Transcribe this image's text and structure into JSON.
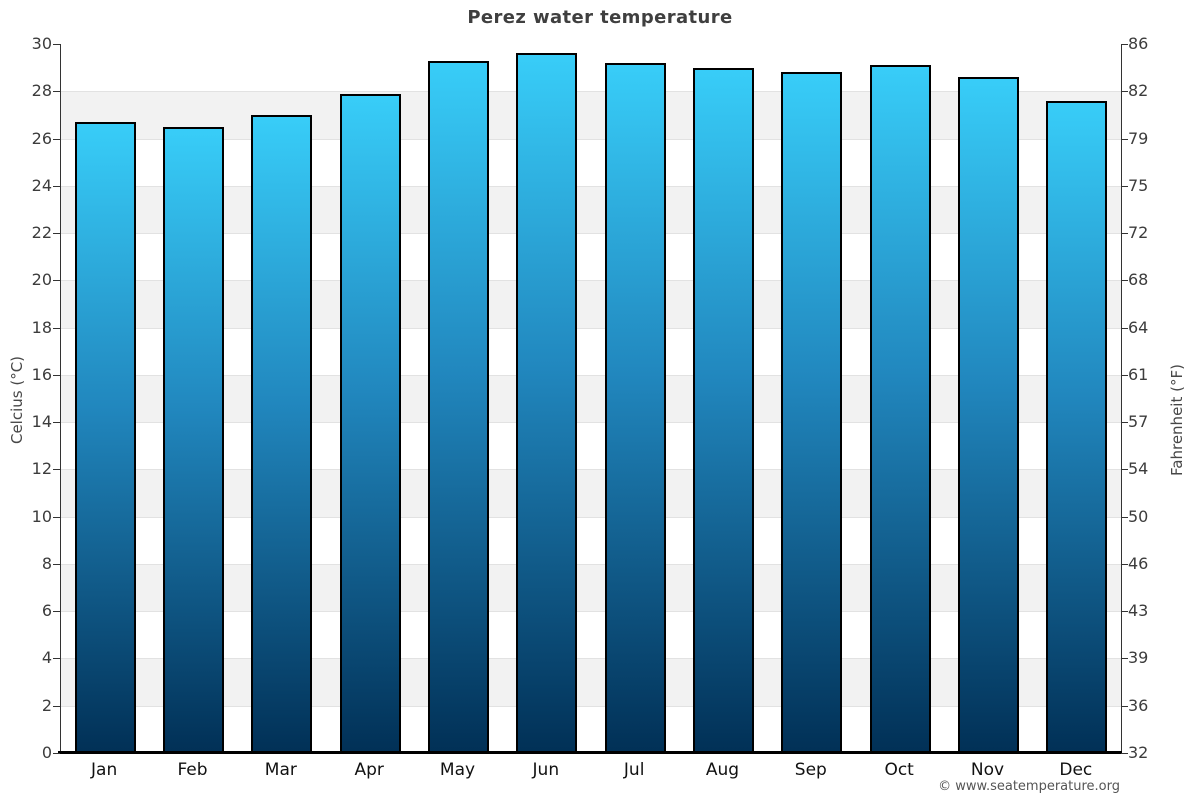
{
  "chart_data": {
    "type": "bar",
    "title": "Perez water temperature",
    "categories": [
      "Jan",
      "Feb",
      "Mar",
      "Apr",
      "May",
      "Jun",
      "Jul",
      "Aug",
      "Sep",
      "Oct",
      "Nov",
      "Dec"
    ],
    "values": [
      26.7,
      26.5,
      27.0,
      27.9,
      29.3,
      29.6,
      29.2,
      29.0,
      28.8,
      29.1,
      28.6,
      27.6
    ],
    "ylabel_left": "Celcius (°C)",
    "ylabel_right": "Fahrenheit (°F)",
    "ylim": [
      0,
      30
    ],
    "ytick_step": 2,
    "yticks_celsius": [
      "0",
      "2",
      "4",
      "6",
      "8",
      "10",
      "12",
      "14",
      "16",
      "18",
      "20",
      "22",
      "24",
      "26",
      "28",
      "30"
    ],
    "yticks_fahrenheit": [
      "32",
      "36",
      "39",
      "43",
      "46",
      "50",
      "54",
      "57",
      "61",
      "64",
      "68",
      "72",
      "75",
      "79",
      "82",
      "86"
    ],
    "grid_on": true,
    "band_color": "#f2f2f2",
    "gridline_color": "#e2e2e2",
    "bar_gradient_top": "#38cdf8",
    "bar_gradient_mid": "#2187be",
    "bar_gradient_bottom": "#013056",
    "bar_border_color": "#000000",
    "legend": "none"
  },
  "footer": {
    "copyright": "© www.seatemperature.org"
  }
}
